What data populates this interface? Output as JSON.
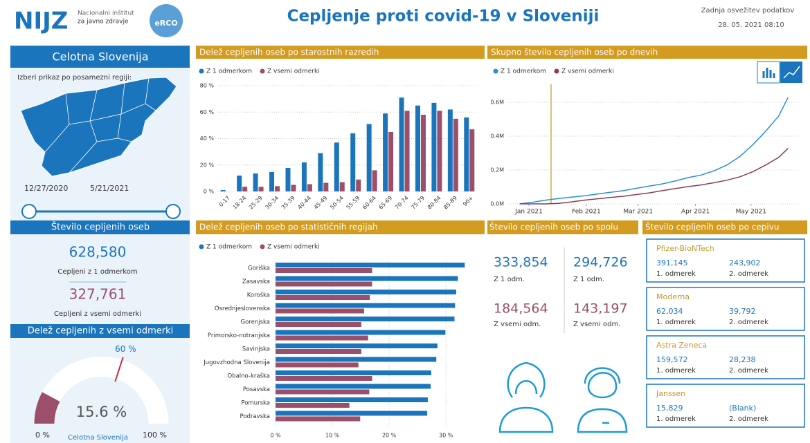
{
  "header": {
    "logo": "NIJZ",
    "institute_line1": "Nacionalni inštitut",
    "institute_line2": "za javno zdravje",
    "badge": "eRCO",
    "title": "Cepljenje proti covid-19 v Sloveniji",
    "refresh_label": "Zadnja osvežitev podatkov",
    "refresh_date": "28. 05. 2021 08:10"
  },
  "region_panel": {
    "title": "Celotna Slovenija",
    "prompt": "Izberi prikaz po posamezni regiji:",
    "date_from": "12/27/2020",
    "date_to": "5/21/2021"
  },
  "count_panel": {
    "title": "Število cepljenih oseb",
    "first_value": "628,580",
    "first_label": "Cepljeni z 1 odmerkom",
    "full_value": "327,761",
    "full_label": "Cepljeni z vsemi odmerki"
  },
  "gauge": {
    "title": "Delež cepljenih z vsemi odmerki",
    "value": 15.6,
    "value_label": "15.6 %",
    "target": 60,
    "target_label": "60 %",
    "min": 0,
    "min_label": "0 %",
    "max": 100,
    "max_label": "100 %",
    "label": "Celotna Slovenija"
  },
  "chart_data": [
    {
      "type": "bar",
      "title": "Delež cepljenih oseb po starostnih razredih",
      "categories": [
        "0-17",
        "18-24",
        "25-29",
        "30-34",
        "35-39",
        "40-44",
        "45-49",
        "50-54",
        "55-59",
        "60-64",
        "65-69",
        "70-74",
        "75-79",
        "80-84",
        "85-89",
        "90+"
      ],
      "series": [
        {
          "name": "Z 1 odmerkom",
          "color": "#1b75bc",
          "values": [
            1,
            12,
            13.6,
            14.7,
            17.8,
            22,
            29,
            37,
            44,
            51,
            59,
            71,
            65,
            67,
            62,
            56
          ]
        },
        {
          "name": "Z vsemi odmerki",
          "color": "#9b4f6a",
          "values": [
            0,
            3.5,
            3.5,
            4,
            5,
            5.5,
            6.5,
            7,
            9,
            16,
            45,
            61,
            58,
            61,
            55,
            47
          ]
        }
      ],
      "ylim": [
        0,
        80
      ],
      "yticks": [
        {
          "value": 0,
          "label": "0 %"
        },
        {
          "value": 20,
          "label": "20 %"
        },
        {
          "value": 40,
          "label": "40 %"
        },
        {
          "value": 60,
          "label": "60 %"
        },
        {
          "value": 80,
          "label": "80 %"
        }
      ],
      "grid": true
    },
    {
      "type": "line",
      "title": "Skupno število cepljenih oseb po dnevih",
      "x": [
        "2020-12-27",
        "2021-01-03",
        "2021-01-10",
        "2021-01-17",
        "2021-01-24",
        "2021-01-31",
        "2021-02-07",
        "2021-02-14",
        "2021-02-21",
        "2021-02-28",
        "2021-03-07",
        "2021-03-14",
        "2021-03-21",
        "2021-03-28",
        "2021-04-04",
        "2021-04-11",
        "2021-04-18",
        "2021-04-25",
        "2021-05-02",
        "2021-05-09",
        "2021-05-16",
        "2021-05-21"
      ],
      "series": [
        {
          "name": "Z 1 odmerkom",
          "color": "#2b8fd0",
          "values": [
            0,
            10000,
            22000,
            32000,
            40000,
            48000,
            58000,
            68000,
            78000,
            92000,
            105000,
            118000,
            135000,
            155000,
            170000,
            195000,
            230000,
            280000,
            350000,
            430000,
            520000,
            628580
          ]
        },
        {
          "name": "Z vsemi odmerki",
          "color": "#8b3a5a",
          "values": [
            0,
            0,
            0,
            3000,
            12000,
            22000,
            30000,
            38000,
            45000,
            55000,
            65000,
            78000,
            90000,
            102000,
            112000,
            125000,
            140000,
            160000,
            190000,
            230000,
            275000,
            327761
          ]
        }
      ],
      "xlim": [
        "2020-12-20",
        "2021-05-28"
      ],
      "xticks": [
        {
          "value": "2021-01-01",
          "label": "Jan 2021"
        },
        {
          "value": "2021-02-01",
          "label": "Feb 2021"
        },
        {
          "value": "2021-03-01",
          "label": "Mar 2021"
        },
        {
          "value": "2021-04-01",
          "label": "Apr 2021"
        },
        {
          "value": "2021-05-01",
          "label": "May 2021"
        }
      ],
      "ylim": [
        0,
        700000
      ],
      "yticks": [
        {
          "value": 0,
          "label": "0.0M"
        },
        {
          "value": 200000,
          "label": "0.2M"
        },
        {
          "value": 400000,
          "label": "0.4M"
        },
        {
          "value": 600000,
          "label": "0.6M"
        }
      ],
      "grid": true
    },
    {
      "type": "bar",
      "orientation": "horizontal",
      "title": "Delež cepljenih oseb po statističnih regijah",
      "categories": [
        "Goriška",
        "Zasavska",
        "Koroška",
        "Osrednjeslovenska",
        "Gorenjska",
        "Primorsko-notranjska",
        "Savinjska",
        "Jugovzhodna Slovenija",
        "Obalno-kraška",
        "Posavska",
        "Pomurska",
        "Podravska"
      ],
      "series": [
        {
          "name": "Z 1 odmerkom",
          "color": "#1b75bc",
          "values": [
            33.3,
            32.1,
            31.8,
            31.6,
            31.5,
            29.9,
            28.5,
            28.3,
            27.4,
            27.3,
            26.8,
            26.7
          ]
        },
        {
          "name": "Z vsemi odmerki",
          "color": "#9b4f6a",
          "values": [
            17,
            17,
            16.6,
            15.6,
            15.1,
            16.3,
            15.1,
            14.6,
            17,
            16.5,
            13,
            14.9
          ]
        }
      ],
      "xlim": [
        0,
        34
      ],
      "xticks": [
        {
          "value": 0,
          "label": "0 %"
        },
        {
          "value": 10,
          "label": "10 %"
        },
        {
          "value": 20,
          "label": "20 %"
        },
        {
          "value": 30,
          "label": "30 %"
        }
      ],
      "grid": true
    }
  ],
  "gender": {
    "title": "Število cepljenih oseb po spolu",
    "female_first": "333,854",
    "female_first_label": "Z 1 odm.",
    "female_full": "184,564",
    "female_full_label": "Z vsemi odm.",
    "male_first": "294,726",
    "male_first_label": "Z 1 odm.",
    "male_full": "143,197",
    "male_full_label": "Z vsemi odm."
  },
  "vaccines": {
    "title": "Število cepljenih oseb po cepivu",
    "items": [
      {
        "name": "Pfizer-BioNTech",
        "dose1": "391,145",
        "dose1_label": "1. odmerek",
        "dose2": "243,902",
        "dose2_label": "2. odmerek"
      },
      {
        "name": "Moderna",
        "dose1": "62,034",
        "dose1_label": "1. odmerek",
        "dose2": "39,792",
        "dose2_label": "2. odmerek"
      },
      {
        "name": "Astra Zeneca",
        "dose1": "159,572",
        "dose1_label": "1. odmerek",
        "dose2": "28,238",
        "dose2_label": "2. odmerek"
      },
      {
        "name": "Janssen",
        "dose1": "15,829",
        "dose1_label": "1. odmerek",
        "dose2": "(Blank)",
        "dose2_label": "2. odmerek"
      }
    ]
  }
}
